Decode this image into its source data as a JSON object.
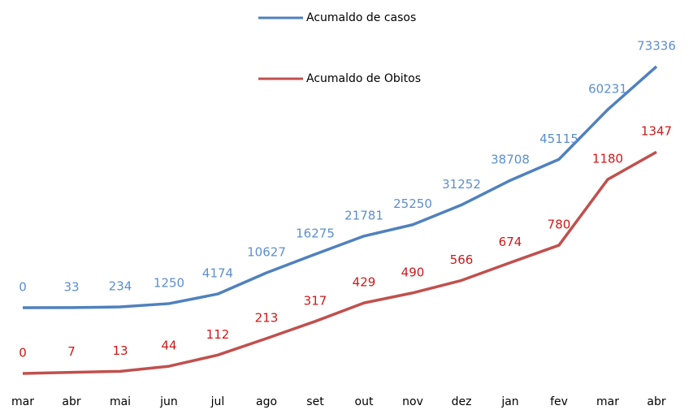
{
  "chart_data": {
    "type": "line",
    "categories": [
      "mar",
      "abr",
      "mai",
      "jun",
      "jul",
      "ago",
      "set",
      "out",
      "nov",
      "dez",
      "jan",
      "fev",
      "mar",
      "abr"
    ],
    "series": [
      {
        "name": "Acumaldo de casos",
        "color": "#4f81bd",
        "label_color": "#5b8fd0",
        "values": [
          0,
          33,
          234,
          1250,
          4174,
          10627,
          16275,
          21781,
          25250,
          31252,
          38708,
          45115,
          60231,
          73336
        ]
      },
      {
        "name": "Acumaldo de Obitos",
        "color": "#c0504d",
        "label_color": "#d01818",
        "axis": "y2",
        "values": [
          0,
          7,
          13,
          44,
          112,
          213,
          317,
          429,
          490,
          566,
          674,
          780,
          1180,
          1347
        ]
      }
    ],
    "ylim": [
      -20000,
      80000
    ],
    "y2lim": [
      0,
      2000
    ],
    "legend": "top"
  }
}
